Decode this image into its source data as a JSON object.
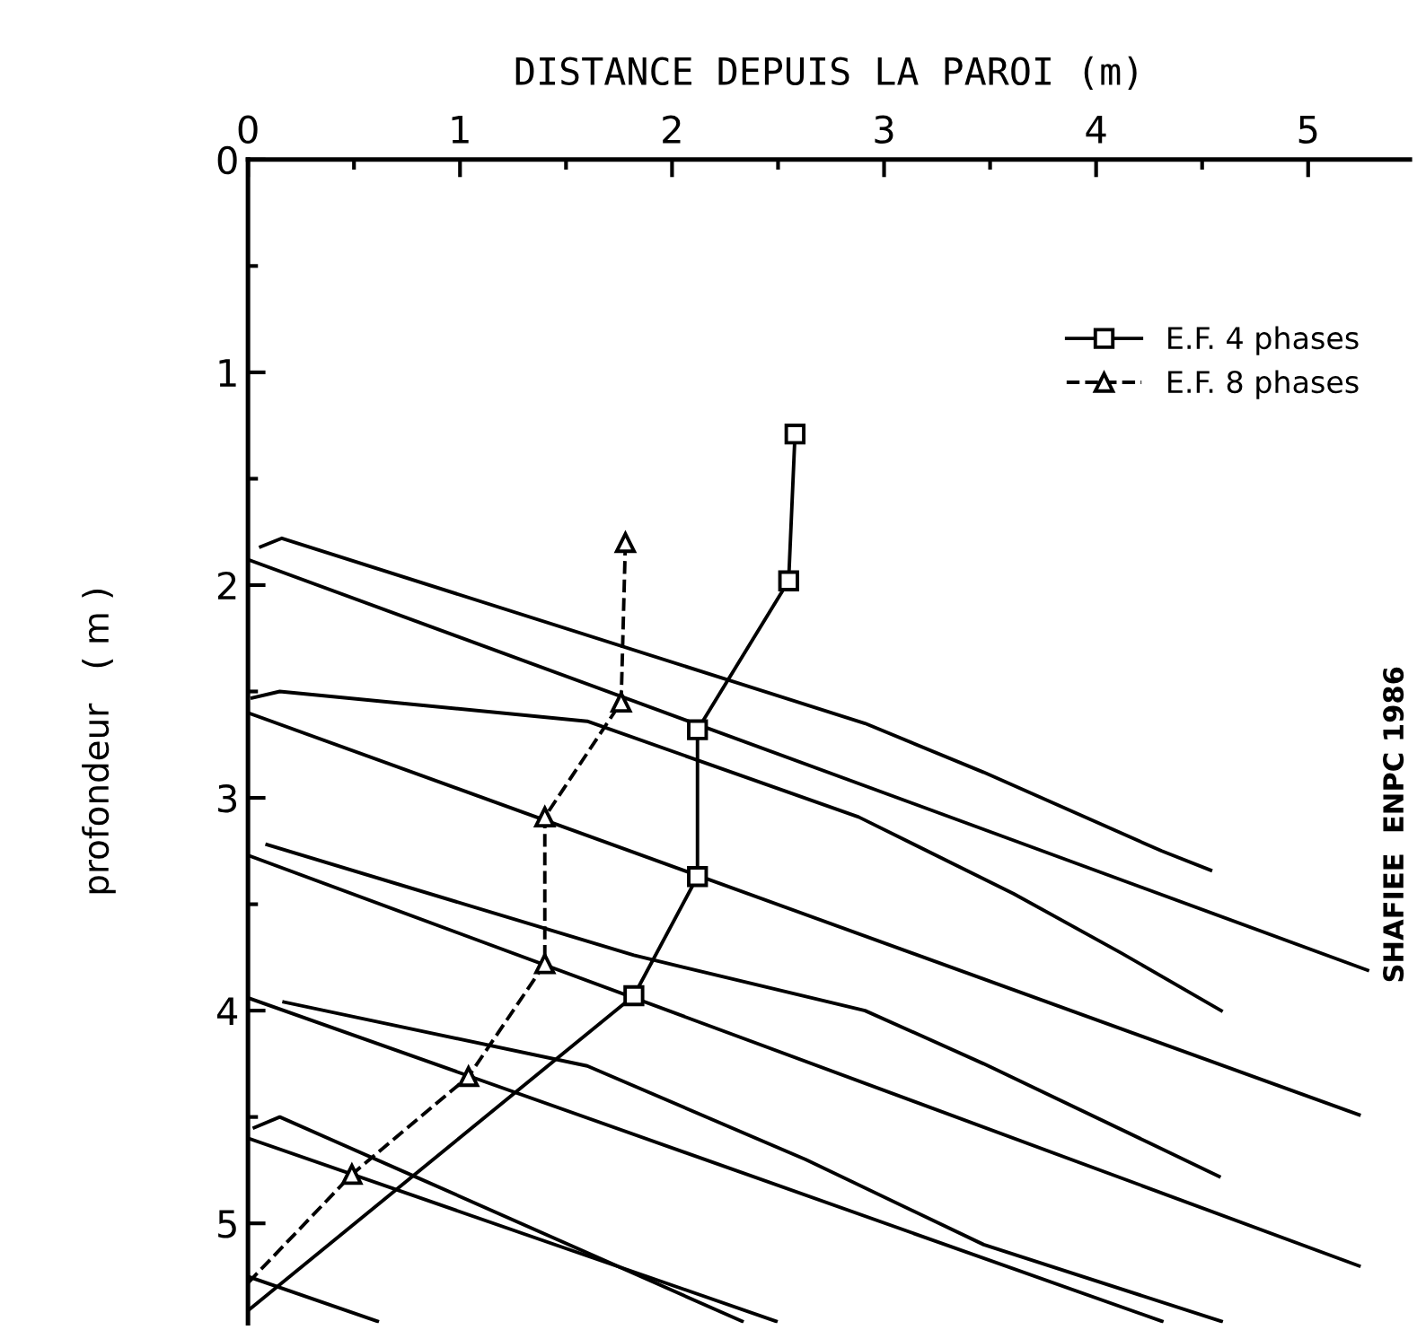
{
  "chart_data": {
    "type": "line",
    "xlabel": "DISTANCE DEPUIS LA PAROI (m)",
    "ylabel": "profondeur   ( m )",
    "xlim": [
      0,
      5.48
    ],
    "ylim": [
      5.47,
      0
    ],
    "xticks": [
      0,
      1,
      2,
      3,
      4,
      5
    ],
    "yticks": [
      0,
      1,
      2,
      3,
      4,
      5
    ],
    "grid": false,
    "legend": "top right",
    "annotations": [
      "SHAFIEE  ENPC 1986"
    ],
    "series": [
      {
        "name": "E.F. 4 phases",
        "color": "#000000",
        "marker": "square",
        "line_style": "solid",
        "x": [
          2.58,
          2.55,
          2.12,
          2.12,
          1.82,
          0
        ],
        "values": [
          1.29,
          1.98,
          2.68,
          3.37,
          3.93,
          5.41
        ]
      },
      {
        "name": "E.F. 8 phases",
        "color": "#000000",
        "marker": "triangle",
        "line_style": "dashed",
        "x": [
          1.78,
          1.76,
          1.4,
          1.4,
          1.04,
          0.49,
          0
        ],
        "values": [
          1.8,
          2.55,
          3.09,
          3.78,
          4.31,
          4.77,
          5.28
        ]
      },
      {
        "color": "#000000",
        "marker": "none",
        "line_style": "solid",
        "x": [
          0.06,
          0.16,
          2.91,
          3.47,
          4.31,
          4.54
        ],
        "values": [
          1.82,
          1.78,
          2.65,
          2.88,
          3.25,
          3.34
        ]
      },
      {
        "color": "#000000",
        "marker": "none",
        "line_style": "solid",
        "x": [
          0,
          5.28
        ],
        "values": [
          1.88,
          3.81
        ]
      },
      {
        "color": "#000000",
        "marker": "none",
        "line_style": "solid",
        "x": [
          0.02,
          0.15,
          1.6,
          2.88,
          3.61,
          4.12,
          4.59
        ],
        "values": [
          2.53,
          2.5,
          2.64,
          3.09,
          3.45,
          3.73,
          4.0
        ]
      },
      {
        "color": "#000000",
        "marker": "none",
        "line_style": "solid",
        "x": [
          0,
          5.24
        ],
        "values": [
          2.6,
          4.49
        ]
      },
      {
        "color": "#000000",
        "marker": "none",
        "line_style": "solid",
        "x": [
          0.09,
          1.82,
          2.91,
          3.47,
          4.31,
          4.58
        ],
        "values": [
          3.22,
          3.74,
          4.0,
          4.25,
          4.65,
          4.78
        ]
      },
      {
        "color": "#000000",
        "marker": "none",
        "line_style": "solid",
        "x": [
          0,
          5.24
        ],
        "values": [
          3.27,
          5.2
        ]
      },
      {
        "color": "#000000",
        "marker": "none",
        "line_style": "solid",
        "x": [
          0.17,
          1.6,
          2.63,
          3.47,
          4.59
        ],
        "values": [
          3.96,
          4.26,
          4.7,
          5.1,
          5.46
        ]
      },
      {
        "color": "#000000",
        "marker": "none",
        "line_style": "solid",
        "x": [
          0,
          4.31
        ],
        "values": [
          3.94,
          5.46
        ]
      },
      {
        "color": "#000000",
        "marker": "none",
        "line_style": "solid",
        "x": [
          0.03,
          0.15,
          0.81,
          2.33
        ],
        "values": [
          4.55,
          4.5,
          4.79,
          5.46
        ]
      },
      {
        "color": "#000000",
        "marker": "none",
        "line_style": "solid",
        "x": [
          0,
          2.49
        ],
        "values": [
          4.6,
          5.46
        ]
      },
      {
        "color": "#000000",
        "marker": "none",
        "line_style": "solid",
        "x": [
          0,
          0.61
        ],
        "values": [
          5.25,
          5.46
        ]
      }
    ]
  }
}
